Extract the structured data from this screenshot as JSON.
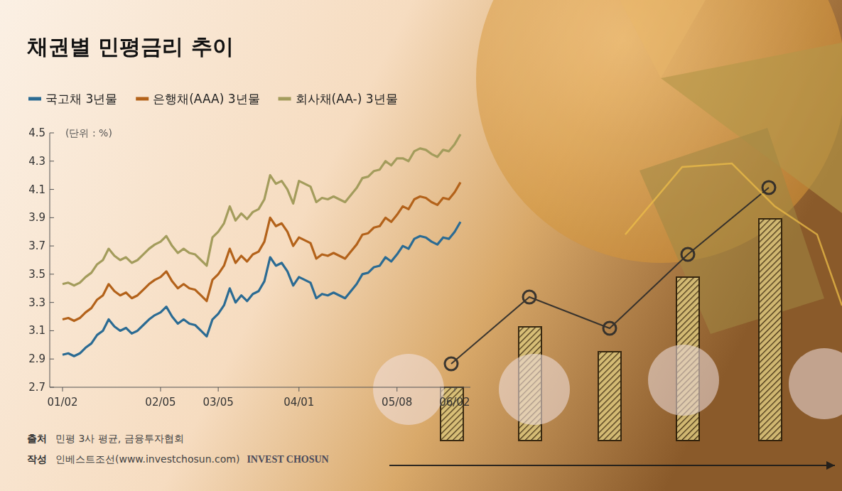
{
  "chart_data": {
    "type": "line",
    "title": "채권별 민평금리 추이",
    "y_label": "(단위 : %)",
    "categories": [
      "01/02",
      null,
      null,
      null,
      null,
      null,
      null,
      null,
      null,
      null,
      null,
      null,
      null,
      null,
      null,
      null,
      null,
      "02/05",
      null,
      null,
      null,
      null,
      null,
      null,
      null,
      null,
      null,
      "03/05",
      null,
      null,
      null,
      null,
      null,
      null,
      null,
      null,
      null,
      null,
      null,
      null,
      null,
      "04/01",
      null,
      null,
      null,
      null,
      null,
      null,
      null,
      null,
      null,
      null,
      null,
      null,
      null,
      null,
      null,
      null,
      "05/08",
      null,
      null,
      null,
      null,
      null,
      null,
      null,
      null,
      null,
      "06/02",
      null
    ],
    "series": [
      {
        "name": "국고채 3년물",
        "color": "#2b6b93",
        "values": [
          2.93,
          2.94,
          2.92,
          2.94,
          2.98,
          3.01,
          3.07,
          3.1,
          3.18,
          3.13,
          3.1,
          3.12,
          3.08,
          3.1,
          3.14,
          3.18,
          3.21,
          3.23,
          3.27,
          3.2,
          3.15,
          3.18,
          3.15,
          3.14,
          3.1,
          3.06,
          3.18,
          3.22,
          3.28,
          3.4,
          3.3,
          3.35,
          3.31,
          3.36,
          3.38,
          3.45,
          3.62,
          3.56,
          3.58,
          3.52,
          3.42,
          3.48,
          3.46,
          3.44,
          3.33,
          3.36,
          3.35,
          3.37,
          3.35,
          3.33,
          3.38,
          3.43,
          3.5,
          3.51,
          3.55,
          3.56,
          3.62,
          3.59,
          3.64,
          3.7,
          3.68,
          3.75,
          3.77,
          3.76,
          3.73,
          3.71,
          3.76,
          3.75,
          3.8,
          3.87
        ]
      },
      {
        "name": "은행채(AAA) 3년물",
        "color": "#b3621a",
        "values": [
          3.18,
          3.19,
          3.17,
          3.19,
          3.23,
          3.26,
          3.32,
          3.35,
          3.43,
          3.38,
          3.35,
          3.37,
          3.33,
          3.35,
          3.39,
          3.43,
          3.46,
          3.48,
          3.52,
          3.45,
          3.4,
          3.43,
          3.4,
          3.39,
          3.35,
          3.31,
          3.46,
          3.5,
          3.56,
          3.68,
          3.58,
          3.63,
          3.59,
          3.64,
          3.66,
          3.73,
          3.9,
          3.84,
          3.86,
          3.8,
          3.7,
          3.76,
          3.74,
          3.72,
          3.61,
          3.64,
          3.63,
          3.65,
          3.63,
          3.61,
          3.66,
          3.71,
          3.78,
          3.79,
          3.83,
          3.84,
          3.9,
          3.87,
          3.92,
          3.98,
          3.96,
          4.03,
          4.05,
          4.04,
          4.01,
          3.99,
          4.04,
          4.03,
          4.08,
          4.15
        ]
      },
      {
        "name": "회사채(AA-) 3년물",
        "color": "#a39c5c",
        "values": [
          3.43,
          3.44,
          3.42,
          3.44,
          3.48,
          3.51,
          3.57,
          3.6,
          3.68,
          3.63,
          3.6,
          3.62,
          3.58,
          3.6,
          3.64,
          3.68,
          3.71,
          3.73,
          3.77,
          3.7,
          3.65,
          3.68,
          3.65,
          3.64,
          3.6,
          3.56,
          3.76,
          3.8,
          3.86,
          3.98,
          3.88,
          3.93,
          3.89,
          3.94,
          3.96,
          4.03,
          4.2,
          4.14,
          4.16,
          4.1,
          4.0,
          4.16,
          4.14,
          4.12,
          4.01,
          4.04,
          4.03,
          4.05,
          4.03,
          4.01,
          4.06,
          4.11,
          4.18,
          4.19,
          4.23,
          4.24,
          4.3,
          4.27,
          4.32,
          4.32,
          4.3,
          4.37,
          4.39,
          4.38,
          4.35,
          4.33,
          4.38,
          4.37,
          4.42,
          4.49
        ]
      }
    ],
    "ylim": [
      2.7,
      4.5
    ],
    "yticks": [
      2.7,
      2.9,
      3.1,
      3.3,
      3.5,
      3.7,
      3.9,
      4.1,
      4.3,
      4.5
    ],
    "grid": false,
    "legend": "top",
    "source": {
      "label": "출처",
      "text": "민평 3사 평균, 금융투자협회"
    },
    "author": {
      "label": "작성",
      "text": "인베스트조선(www.investchosun.com)",
      "brand": "INVEST CHOSUN"
    }
  }
}
